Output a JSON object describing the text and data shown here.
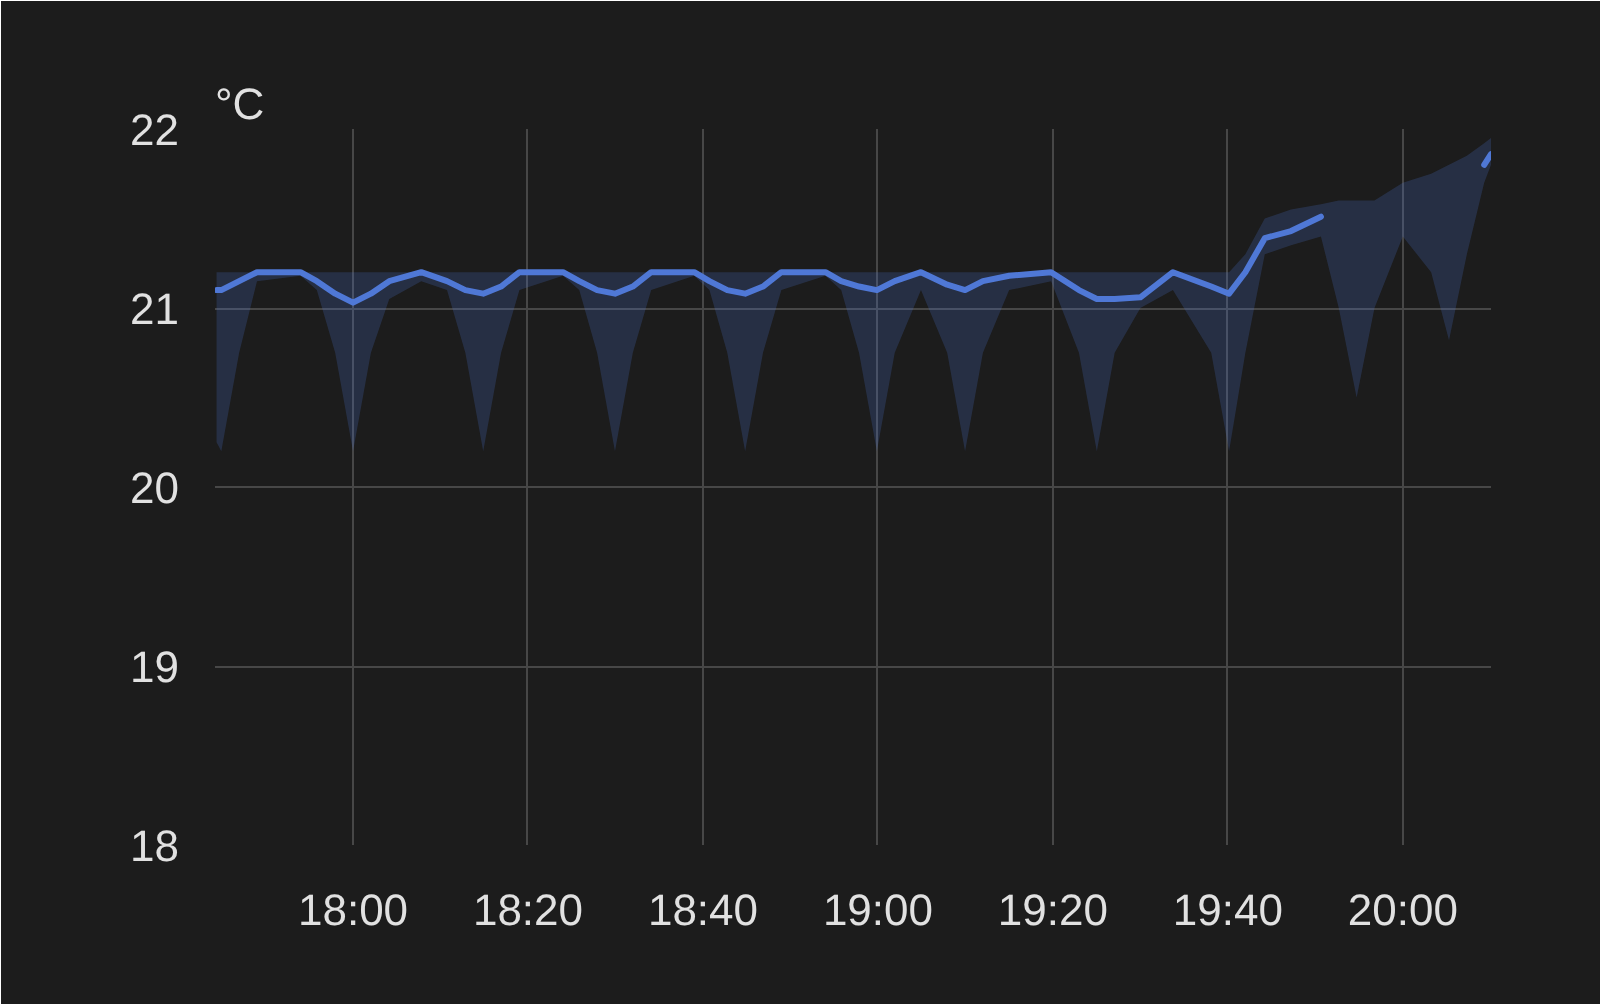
{
  "chart_data": {
    "type": "line",
    "ylabel": "°C",
    "xlim": [
      17.737,
      20.168
    ],
    "ylim": [
      18,
      22
    ],
    "xticks": [
      {
        "value": 18,
        "label": "18:00"
      },
      {
        "value": 18.3333,
        "label": "18:20"
      },
      {
        "value": 18.6667,
        "label": "18:40"
      },
      {
        "value": 19,
        "label": "19:00"
      },
      {
        "value": 19.3333,
        "label": "19:20"
      },
      {
        "value": 19.6667,
        "label": "19:40"
      },
      {
        "value": 20,
        "label": "20:00"
      }
    ],
    "yticks": [
      18,
      19,
      20,
      21,
      22
    ],
    "grid": true,
    "x": [
      17.74,
      17.749,
      17.783,
      17.817,
      17.9,
      17.931,
      17.966,
      18.0,
      18.034,
      18.069,
      18.13,
      18.179,
      18.214,
      18.248,
      18.282,
      18.317,
      18.4,
      18.431,
      18.465,
      18.499,
      18.533,
      18.568,
      18.65,
      18.679,
      18.713,
      18.747,
      18.781,
      18.816,
      18.9,
      18.93,
      18.964,
      18.998,
      19.032,
      19.082,
      19.132,
      19.166,
      19.2,
      19.25,
      19.33,
      19.383,
      19.417,
      19.451,
      19.5,
      19.562,
      19.635,
      19.669,
      19.7,
      19.737,
      19.787,
      19.844,
      19.878,
      19.912,
      19.946,
      20.0,
      20.054,
      20.088,
      20.122,
      20.155,
      20.168
    ],
    "series": [
      {
        "color": "#4f78d6",
        "values": [
          21.1,
          21.1,
          21.15,
          21.2,
          21.2,
          21.15,
          21.08,
          21.03,
          21.08,
          21.15,
          21.2,
          21.15,
          21.1,
          21.08,
          21.12,
          21.2,
          21.2,
          21.15,
          21.1,
          21.08,
          21.12,
          21.2,
          21.2,
          21.15,
          21.1,
          21.08,
          21.12,
          21.2,
          21.2,
          21.15,
          21.12,
          21.1,
          21.15,
          21.2,
          21.13,
          21.1,
          21.15,
          21.18,
          21.2,
          21.1,
          21.05,
          21.05,
          21.06,
          21.2,
          21.12,
          21.08,
          21.2,
          21.39,
          21.43,
          21.51,
          null,
          null,
          null,
          null,
          null,
          null,
          null,
          21.8,
          21.86
        ],
        "lower": [
          20.25,
          20.2,
          20.75,
          21.15,
          21.18,
          21.1,
          20.75,
          20.2,
          20.75,
          21.05,
          21.15,
          21.1,
          20.75,
          20.2,
          20.75,
          21.1,
          21.18,
          21.1,
          20.75,
          20.2,
          20.75,
          21.1,
          21.18,
          21.1,
          20.75,
          20.2,
          20.75,
          21.1,
          21.18,
          21.1,
          20.75,
          20.2,
          20.75,
          21.1,
          20.75,
          20.2,
          20.75,
          21.1,
          21.15,
          20.75,
          20.2,
          20.75,
          21.0,
          21.1,
          20.75,
          20.2,
          20.75,
          21.3,
          21.35,
          21.4,
          21.0,
          20.5,
          21.0,
          21.4,
          21.2,
          20.82,
          21.3,
          21.7,
          21.8
        ],
        "upper": [
          21.2,
          21.2,
          21.2,
          21.2,
          21.2,
          21.2,
          21.2,
          21.2,
          21.2,
          21.2,
          21.2,
          21.2,
          21.2,
          21.2,
          21.2,
          21.2,
          21.2,
          21.2,
          21.2,
          21.2,
          21.2,
          21.2,
          21.2,
          21.2,
          21.2,
          21.2,
          21.2,
          21.2,
          21.2,
          21.2,
          21.2,
          21.2,
          21.2,
          21.2,
          21.2,
          21.2,
          21.2,
          21.2,
          21.2,
          21.2,
          21.2,
          21.2,
          21.2,
          21.2,
          21.2,
          21.2,
          21.3,
          21.5,
          21.55,
          21.58,
          21.6,
          21.6,
          21.6,
          21.7,
          21.75,
          21.8,
          21.85,
          21.92,
          21.95
        ]
      }
    ]
  }
}
